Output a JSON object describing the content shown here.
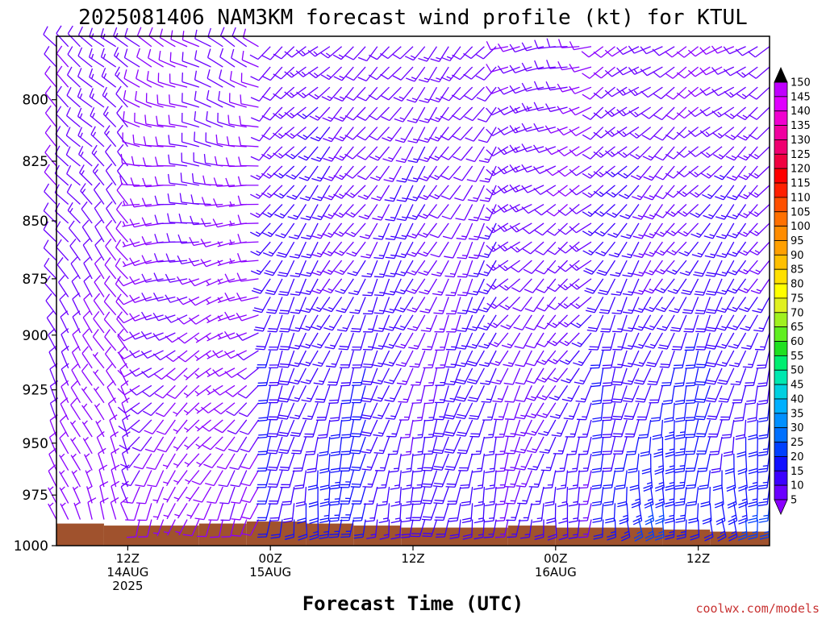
{
  "chart_data": {
    "type": "wind-barb-time-height",
    "title": "2025081406 NAM3KM forecast wind profile (kt) for KTUL",
    "xlabel": "Forecast Time (UTC)",
    "ylabel": "",
    "credit": "coolwx.com/models",
    "y_axis": {
      "scale": "pressure",
      "range_hpa": [
        1000,
        775
      ],
      "ticks": [
        800,
        825,
        850,
        875,
        900,
        925,
        950,
        975,
        1000
      ]
    },
    "x_axis": {
      "range_hours": [
        6,
        66
      ],
      "ticks": [
        {
          "hour": 12,
          "lines": [
            "12Z",
            "14AUG",
            "2025"
          ]
        },
        {
          "hour": 24,
          "lines": [
            "00Z",
            "15AUG"
          ]
        },
        {
          "hour": 36,
          "lines": [
            "12Z"
          ]
        },
        {
          "hour": 48,
          "lines": [
            "00Z",
            "16AUG"
          ]
        },
        {
          "hour": 60,
          "lines": [
            "12Z"
          ]
        }
      ]
    },
    "colorbar": {
      "unit": "kt",
      "levels": [
        5,
        10,
        15,
        20,
        25,
        30,
        35,
        40,
        45,
        50,
        55,
        60,
        65,
        70,
        75,
        80,
        85,
        90,
        95,
        100,
        105,
        110,
        115,
        120,
        125,
        130,
        135,
        140,
        145,
        150
      ],
      "colors": [
        "#8a00ff",
        "#6a00ff",
        "#3c00ff",
        "#1010ff",
        "#0040ff",
        "#0070ff",
        "#0090ff",
        "#00b0ff",
        "#00d0e0",
        "#00e8b0",
        "#00ee70",
        "#20e020",
        "#60ee20",
        "#a0f020",
        "#e0f020",
        "#ffff00",
        "#ffe000",
        "#ffc000",
        "#ffa000",
        "#ff8c00",
        "#ff7000",
        "#ff5000",
        "#ff2000",
        "#ff0000",
        "#f00040",
        "#f00070",
        "#f000a0",
        "#f000d0",
        "#e000ff",
        "#c000ff"
      ],
      "under_color": "#8a00ff",
      "over_color": "#000000"
    },
    "terrain": {
      "color": "#a0522d",
      "surface_pressure_hpa": [
        {
          "hour": 6,
          "p": 989
        },
        {
          "hour": 10,
          "p": 990
        },
        {
          "hour": 18,
          "p": 989
        },
        {
          "hour": 22,
          "p": 988
        },
        {
          "hour": 27,
          "p": 989
        },
        {
          "hour": 31,
          "p": 990
        },
        {
          "hour": 35,
          "p": 991
        },
        {
          "hour": 44,
          "p": 990
        },
        {
          "hour": 48,
          "p": 991
        },
        {
          "hour": 57,
          "p": 992
        },
        {
          "hour": 61,
          "p": 993
        },
        {
          "hour": 66,
          "p": 992
        }
      ]
    },
    "barb_grid": {
      "hour_step": 1,
      "levels_hpa": [
        779,
        787,
        795,
        803,
        811,
        819,
        827,
        835,
        843,
        851,
        859,
        867,
        875,
        883,
        891,
        899,
        907,
        915,
        923,
        931,
        939,
        947,
        955,
        963,
        971,
        979,
        987
      ],
      "regimes": [
        {
          "hours": [
            6,
            13
          ],
          "low_dir_deg": 340,
          "high_dir_deg": 310,
          "low_speed_kt": 8,
          "high_speed_kt": 12
        },
        {
          "hours": [
            13,
            24
          ],
          "low_dir_deg": 200,
          "high_dir_deg": 300,
          "low_speed_kt": 8,
          "high_speed_kt": 10
        },
        {
          "hours": [
            24,
            33
          ],
          "low_dir_deg": 185,
          "high_dir_deg": 230,
          "low_speed_kt": 22,
          "high_speed_kt": 12
        },
        {
          "hours": [
            33,
            44
          ],
          "low_dir_deg": 190,
          "high_dir_deg": 220,
          "low_speed_kt": 18,
          "high_speed_kt": 12
        },
        {
          "hours": [
            44,
            52
          ],
          "low_dir_deg": 185,
          "high_dir_deg": 260,
          "low_speed_kt": 16,
          "high_speed_kt": 10
        },
        {
          "hours": [
            52,
            66
          ],
          "low_dir_deg": 175,
          "high_dir_deg": 240,
          "low_speed_kt": 24,
          "high_speed_kt": 10
        }
      ]
    }
  }
}
